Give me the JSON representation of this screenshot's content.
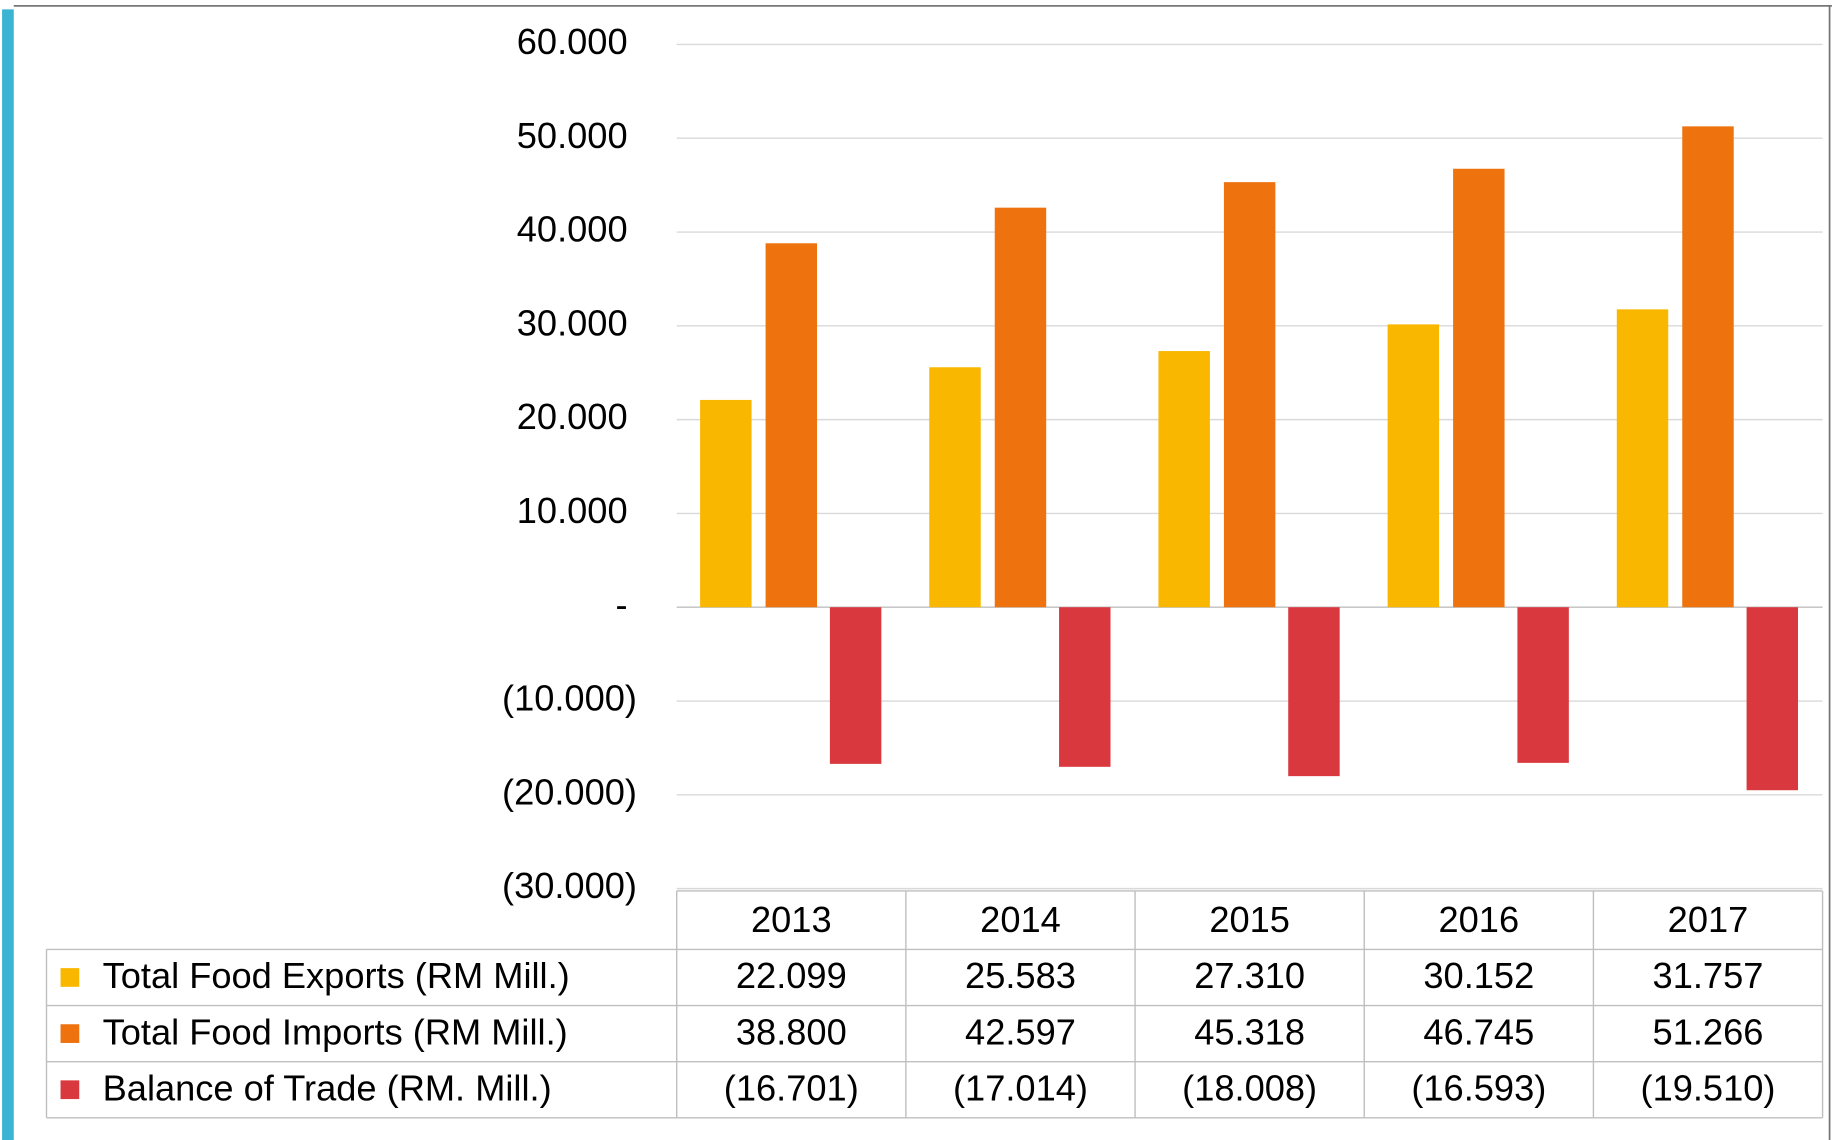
{
  "chart_data": {
    "type": "bar",
    "categories": [
      "2013",
      "2014",
      "2015",
      "2016",
      "2017"
    ],
    "series": [
      {
        "name": "Total Food Exports (RM Mill.)",
        "color": "#f9b700",
        "values": [
          22099,
          25583,
          27310,
          30152,
          31757
        ],
        "value_labels": [
          "22.099",
          "25.583",
          "27.310",
          "30.152",
          "31.757"
        ]
      },
      {
        "name": "Total Food Imports (RM Mill.)",
        "color": "#ee720e",
        "values": [
          38800,
          42597,
          45318,
          46745,
          51266
        ],
        "value_labels": [
          "38.800",
          "42.597",
          "45.318",
          "46.745",
          "51.266"
        ]
      },
      {
        "name": "Balance of Trade (RM. Mill.)",
        "color": "#d9393e",
        "values": [
          -16701,
          -17014,
          -18008,
          -16593,
          -19510
        ],
        "value_labels": [
          "(16.701)",
          "(17.014)",
          "(18.008)",
          "(16.593)",
          "(19.510)"
        ]
      }
    ],
    "ylim": [
      -30000,
      60000
    ],
    "yticks": [
      {
        "value": 60000,
        "label": "60.000"
      },
      {
        "value": 50000,
        "label": "50.000"
      },
      {
        "value": 40000,
        "label": "40.000"
      },
      {
        "value": 30000,
        "label": "30.000"
      },
      {
        "value": 20000,
        "label": "20.000"
      },
      {
        "value": 10000,
        "label": "10.000"
      },
      {
        "value": 0,
        "label": "-"
      },
      {
        "value": -10000,
        "label": "(10.000)"
      },
      {
        "value": -20000,
        "label": "(20.000)"
      },
      {
        "value": -30000,
        "label": "(30.000)"
      }
    ],
    "grid": true
  }
}
